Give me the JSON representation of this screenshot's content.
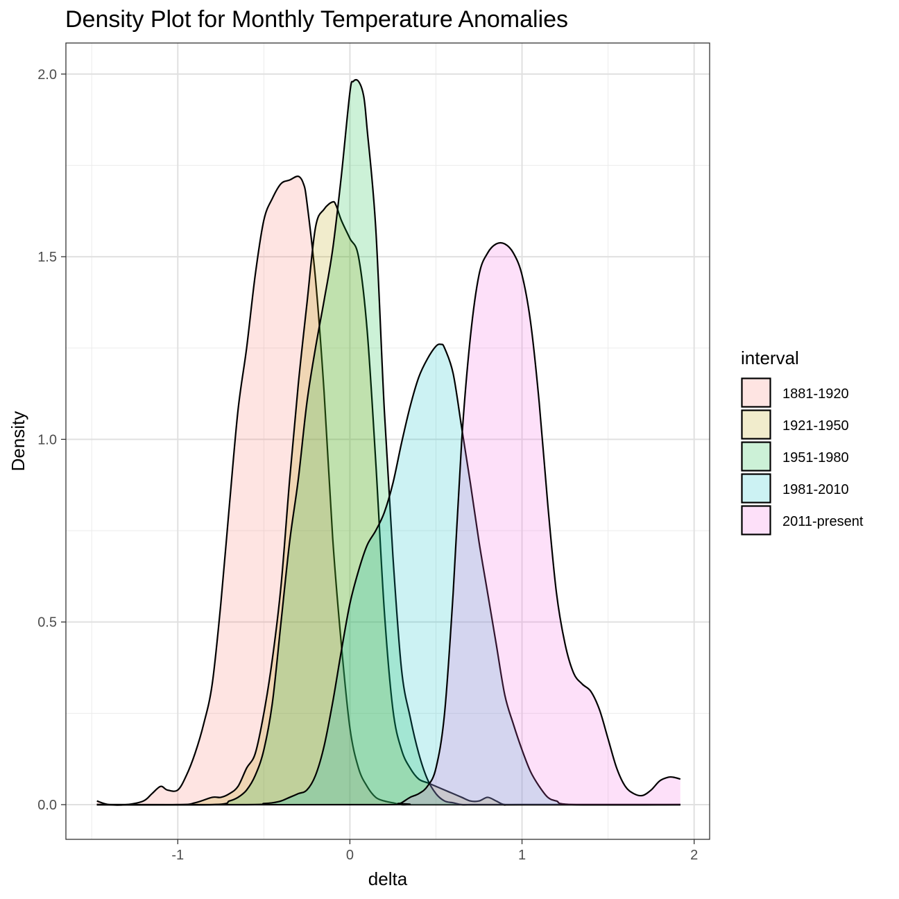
{
  "chart_data": {
    "type": "area",
    "subtype": "density",
    "title": "Density Plot for Monthly Temperature Anomalies",
    "xlabel": "delta",
    "ylabel": "Density",
    "xlim": [
      -1.65,
      2.09
    ],
    "ylim": [
      -0.095,
      2.085
    ],
    "x_ticks": [
      -1,
      0,
      1,
      2
    ],
    "x_tick_labels": [
      "-1",
      "0",
      "1",
      "2"
    ],
    "y_ticks": [
      0.0,
      0.5,
      1.0,
      1.5,
      2.0
    ],
    "y_tick_labels": [
      "0.0",
      "0.5",
      "1.0",
      "1.5",
      "2.0"
    ],
    "grid": true,
    "legend": {
      "title": "interval",
      "position": "right"
    },
    "series": [
      {
        "name": "1881-1920",
        "fill": "#f8766d",
        "x": [
          -1.47,
          -1.4,
          -1.3,
          -1.2,
          -1.15,
          -1.1,
          -1.06,
          -1.0,
          -0.95,
          -0.9,
          -0.85,
          -0.8,
          -0.75,
          -0.7,
          -0.65,
          -0.6,
          -0.55,
          -0.5,
          -0.45,
          -0.4,
          -0.35,
          -0.3,
          -0.27,
          -0.25,
          -0.2,
          -0.15,
          -0.1,
          -0.05,
          0.0,
          0.05,
          0.1,
          0.15,
          0.2,
          0.25,
          0.3,
          0.35,
          0.4,
          0.45,
          0.5,
          0.55,
          0.6,
          0.65,
          0.7,
          0.75,
          0.8,
          0.85,
          0.9,
          1.0,
          1.1,
          1.2,
          1.5,
          1.92
        ],
        "y": [
          0.01,
          0.0,
          0.0,
          0.01,
          0.03,
          0.05,
          0.04,
          0.04,
          0.08,
          0.14,
          0.22,
          0.33,
          0.55,
          0.82,
          1.08,
          1.25,
          1.45,
          1.6,
          1.66,
          1.7,
          1.71,
          1.72,
          1.7,
          1.65,
          1.44,
          1.13,
          0.73,
          0.44,
          0.21,
          0.1,
          0.05,
          0.02,
          0.01,
          0.005,
          0.0,
          0.0,
          0.0,
          0.0,
          0.0,
          0.0,
          0.0,
          0.0,
          0.0,
          0.0,
          0.0,
          0.0,
          0.0,
          0.0,
          0.0,
          0.0,
          0.0,
          0.0
        ]
      },
      {
        "name": "1921-1950",
        "fill": "#b79f00",
        "x": [
          -1.47,
          -1.0,
          -0.9,
          -0.8,
          -0.75,
          -0.7,
          -0.65,
          -0.6,
          -0.55,
          -0.5,
          -0.45,
          -0.4,
          -0.35,
          -0.3,
          -0.25,
          -0.2,
          -0.15,
          -0.1,
          -0.08,
          -0.05,
          0.0,
          0.05,
          0.1,
          0.15,
          0.2,
          0.25,
          0.3,
          0.35,
          0.4,
          0.45,
          0.5,
          0.55,
          0.6,
          0.65,
          0.7,
          0.75,
          0.8,
          0.85,
          0.9,
          1.0,
          1.92
        ],
        "y": [
          0.0,
          0.0,
          0.005,
          0.02,
          0.02,
          0.03,
          0.05,
          0.1,
          0.14,
          0.25,
          0.4,
          0.6,
          0.89,
          1.15,
          1.37,
          1.58,
          1.63,
          1.65,
          1.64,
          1.6,
          1.55,
          1.5,
          1.3,
          0.94,
          0.53,
          0.26,
          0.15,
          0.1,
          0.07,
          0.06,
          0.05,
          0.04,
          0.03,
          0.02,
          0.01,
          0.01,
          0.02,
          0.01,
          0.0,
          0.0,
          0.0
        ]
      },
      {
        "name": "1951-1980",
        "fill": "#00ba38",
        "x": [
          -1.47,
          -0.8,
          -0.7,
          -0.65,
          -0.6,
          -0.55,
          -0.5,
          -0.45,
          -0.4,
          -0.35,
          -0.3,
          -0.25,
          -0.2,
          -0.15,
          -0.1,
          -0.05,
          0.0,
          0.02,
          0.05,
          0.08,
          0.1,
          0.15,
          0.2,
          0.25,
          0.3,
          0.35,
          0.4,
          0.45,
          0.5,
          0.55,
          0.6,
          0.65,
          0.7,
          0.75,
          0.8,
          0.9,
          1.92
        ],
        "y": [
          0.0,
          0.0,
          0.01,
          0.02,
          0.04,
          0.08,
          0.15,
          0.28,
          0.5,
          0.72,
          0.89,
          1.1,
          1.25,
          1.38,
          1.52,
          1.72,
          1.95,
          1.98,
          1.98,
          1.94,
          1.85,
          1.58,
          1.08,
          0.68,
          0.37,
          0.24,
          0.14,
          0.07,
          0.03,
          0.01,
          0.005,
          0.0,
          0.0,
          0.0,
          0.0,
          0.0,
          0.0
        ]
      },
      {
        "name": "1981-2010",
        "fill": "#00bfc4",
        "x": [
          -1.47,
          -0.6,
          -0.5,
          -0.45,
          -0.4,
          -0.35,
          -0.3,
          -0.25,
          -0.2,
          -0.15,
          -0.1,
          -0.05,
          0.0,
          0.05,
          0.1,
          0.15,
          0.2,
          0.25,
          0.3,
          0.35,
          0.4,
          0.45,
          0.5,
          0.53,
          0.55,
          0.6,
          0.65,
          0.7,
          0.75,
          0.8,
          0.85,
          0.9,
          0.95,
          1.0,
          1.05,
          1.1,
          1.15,
          1.2,
          1.3,
          1.92
        ],
        "y": [
          0.0,
          0.0,
          0.003,
          0.005,
          0.01,
          0.02,
          0.03,
          0.04,
          0.08,
          0.16,
          0.28,
          0.42,
          0.55,
          0.64,
          0.71,
          0.75,
          0.8,
          0.88,
          0.99,
          1.09,
          1.17,
          1.22,
          1.255,
          1.26,
          1.25,
          1.18,
          1.03,
          0.88,
          0.72,
          0.58,
          0.44,
          0.3,
          0.22,
          0.15,
          0.09,
          0.05,
          0.02,
          0.01,
          0.0,
          0.0
        ]
      },
      {
        "name": "2011-present",
        "fill": "#f564e3",
        "x": [
          -1.47,
          0.2,
          0.28,
          0.3,
          0.35,
          0.4,
          0.45,
          0.5,
          0.55,
          0.6,
          0.65,
          0.7,
          0.75,
          0.8,
          0.85,
          0.9,
          0.95,
          1.0,
          1.05,
          1.1,
          1.15,
          1.2,
          1.25,
          1.3,
          1.35,
          1.4,
          1.45,
          1.5,
          1.55,
          1.6,
          1.65,
          1.7,
          1.75,
          1.8,
          1.85,
          1.88,
          1.92
        ],
        "y": [
          0.0,
          0.0,
          0.003,
          0.005,
          0.02,
          0.03,
          0.05,
          0.1,
          0.25,
          0.58,
          1.0,
          1.28,
          1.45,
          1.51,
          1.535,
          1.535,
          1.51,
          1.45,
          1.32,
          1.1,
          0.82,
          0.58,
          0.44,
          0.36,
          0.33,
          0.31,
          0.26,
          0.18,
          0.1,
          0.05,
          0.03,
          0.025,
          0.04,
          0.065,
          0.075,
          0.075,
          0.07
        ]
      }
    ]
  }
}
